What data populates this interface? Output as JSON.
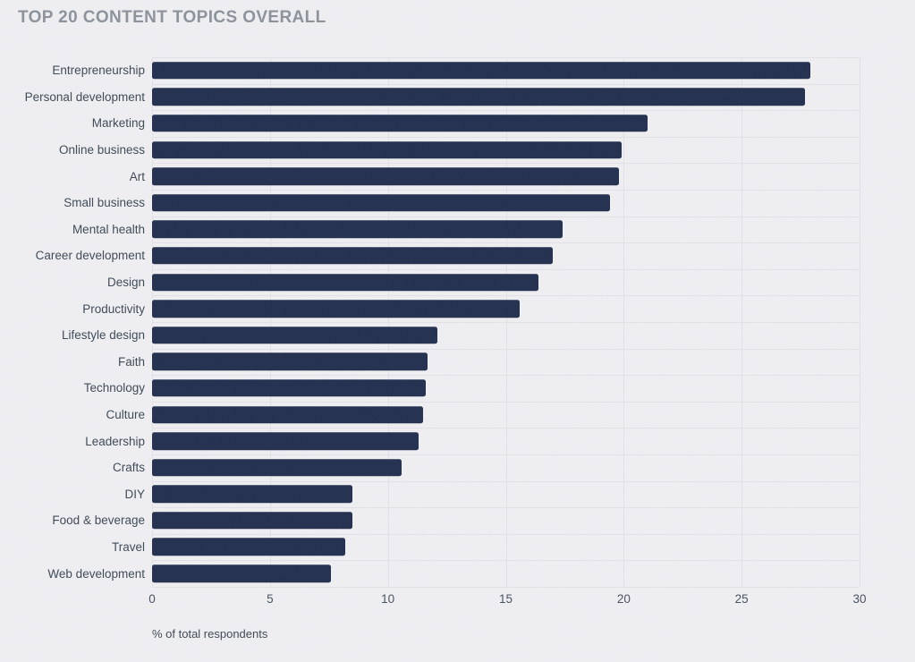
{
  "title": "TOP 20 CONTENT TOPICS OVERALL",
  "chart_data": {
    "type": "bar",
    "orientation": "horizontal",
    "title": "TOP 20 CONTENT TOPICS OVERALL",
    "categories": [
      "Entrepreneurship",
      "Personal development",
      "Marketing",
      "Online business",
      "Art",
      "Small business",
      "Mental health",
      "Career development",
      "Design",
      "Productivity",
      "Lifestyle design",
      "Faith",
      "Technology",
      "Culture",
      "Leadership",
      "Crafts",
      "DIY",
      "Food & beverage",
      "Travel",
      "Web development"
    ],
    "values": [
      27.9,
      27.7,
      21.0,
      19.9,
      19.8,
      19.4,
      17.4,
      17.0,
      16.4,
      15.6,
      12.1,
      11.7,
      11.6,
      11.5,
      11.3,
      10.6,
      8.5,
      8.5,
      8.2,
      7.6
    ],
    "xlabel": "% of total respondents",
    "xticks": [
      0,
      5,
      10,
      15,
      20,
      25,
      30
    ],
    "xlim": [
      0,
      30
    ],
    "grid": true,
    "legend": false
  },
  "colors": {
    "background": "#f0f0f3",
    "bar": "#23304f",
    "title_text": "#8d939c",
    "label_text": "#3f4a57",
    "tick_text": "#48525f",
    "gridline": "#e2e2e8"
  }
}
